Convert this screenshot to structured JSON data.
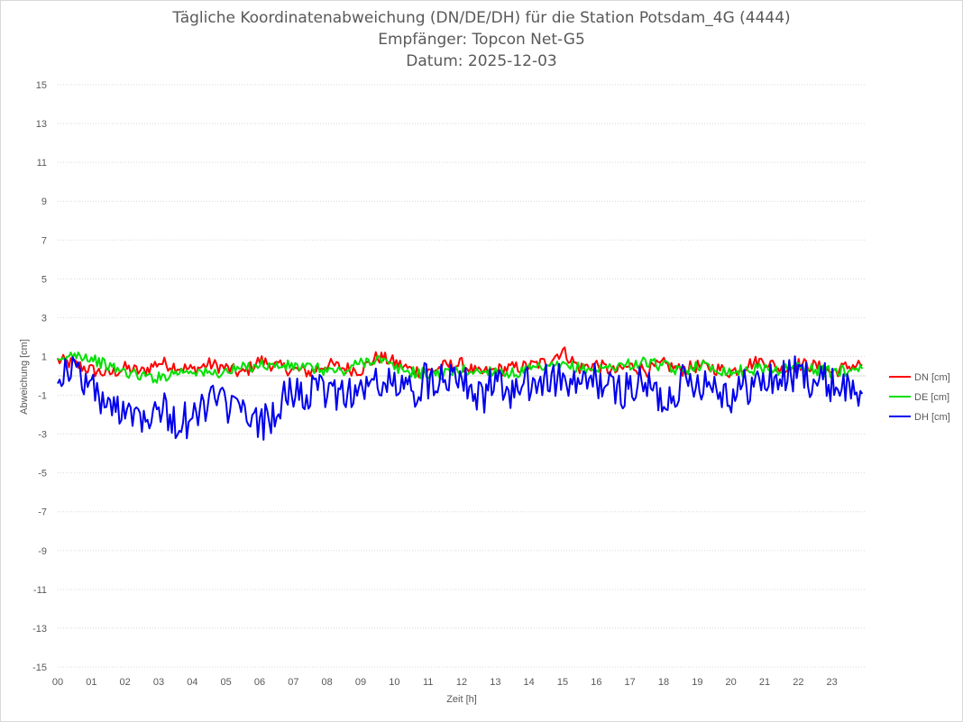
{
  "chart_data": {
    "type": "line",
    "title": "Tägliche Koordinatenabweichung (DN/DE/DH) für die Station Potsdam_4G (4444)",
    "subtitle1": "Empfänger: Topcon Net-G5",
    "subtitle2": "Datum: 2025-12-03",
    "xlabel": "Zeit [h]",
    "ylabel": "Abweichung [cm]",
    "xlim": [
      0,
      24
    ],
    "ylim": [
      -15,
      15
    ],
    "x_ticks": [
      "00",
      "01",
      "02",
      "03",
      "04",
      "05",
      "06",
      "07",
      "08",
      "09",
      "10",
      "11",
      "12",
      "13",
      "14",
      "15",
      "16",
      "17",
      "18",
      "19",
      "20",
      "21",
      "22",
      "23"
    ],
    "y_ticks": [
      15,
      13,
      11,
      9,
      7,
      5,
      3,
      1,
      -1,
      -3,
      -5,
      -7,
      -9,
      -11,
      -13,
      -15
    ],
    "grid": "horizontal dotted",
    "legend_position": "right",
    "x_hours": [
      0,
      0.5,
      1,
      1.5,
      2,
      2.5,
      3,
      3.5,
      4,
      4.5,
      5,
      5.5,
      6,
      6.5,
      7,
      7.5,
      8,
      8.5,
      9,
      9.5,
      10,
      10.5,
      11,
      11.5,
      12,
      12.5,
      13,
      13.5,
      14,
      14.5,
      15,
      15.5,
      16,
      16.5,
      17,
      17.5,
      18,
      18.5,
      19,
      19.5,
      20,
      20.5,
      21,
      21.5,
      22,
      22.5,
      23,
      23.5,
      23.9
    ],
    "series": [
      {
        "name": "DN [cm]",
        "color": "#ff0000",
        "values": [
          0.8,
          0.6,
          0.3,
          0.1,
          0.4,
          0.2,
          0.7,
          0.5,
          0.3,
          0.6,
          0.4,
          0.1,
          0.8,
          0.5,
          0.3,
          0.2,
          0.6,
          0.4,
          0.3,
          1.0,
          0.7,
          0.3,
          0.2,
          0.5,
          0.6,
          0.1,
          0.3,
          0.4,
          0.5,
          0.7,
          1.3,
          0.4,
          0.6,
          0.2,
          0.5,
          0.3,
          0.6,
          0.3,
          0.5,
          0.4,
          0.2,
          0.6,
          0.8,
          0.3,
          0.6,
          0.5,
          0.2,
          0.5,
          0.6
        ]
      },
      {
        "name": "DE [cm]",
        "color": "#00e000",
        "values": [
          0.6,
          1.2,
          0.9,
          0.5,
          0.2,
          0.0,
          -0.1,
          0.2,
          0.3,
          0.1,
          0.2,
          0.4,
          0.6,
          0.5,
          0.5,
          0.4,
          0.3,
          0.2,
          0.7,
          0.9,
          0.4,
          0.2,
          0.1,
          0.1,
          0.3,
          0.2,
          0.3,
          0.1,
          0.3,
          0.4,
          0.5,
          0.4,
          0.3,
          0.5,
          0.6,
          0.7,
          0.5,
          0.2,
          0.6,
          0.4,
          0.2,
          0.3,
          0.4,
          0.3,
          0.5,
          0.3,
          0.2,
          0.3,
          0.5
        ]
      },
      {
        "name": "DH [cm]",
        "color": "#0000ee",
        "values": [
          0.2,
          0.3,
          -0.5,
          -1.8,
          -1.5,
          -2.0,
          -1.5,
          -2.4,
          -2.3,
          -1.2,
          -1.5,
          -2.0,
          -2.6,
          -1.7,
          -0.8,
          -1.0,
          -0.8,
          -0.8,
          -0.8,
          -0.3,
          -0.5,
          -0.8,
          -0.2,
          0.1,
          0.3,
          -1.2,
          -0.4,
          -0.9,
          -0.5,
          -0.2,
          -0.3,
          -0.6,
          -0.2,
          -0.8,
          -0.6,
          -0.5,
          -1.3,
          -0.4,
          -0.2,
          -0.4,
          -1.0,
          -0.5,
          -0.3,
          -0.1,
          0.1,
          -0.2,
          -0.4,
          -0.6,
          -0.8
        ]
      }
    ]
  }
}
